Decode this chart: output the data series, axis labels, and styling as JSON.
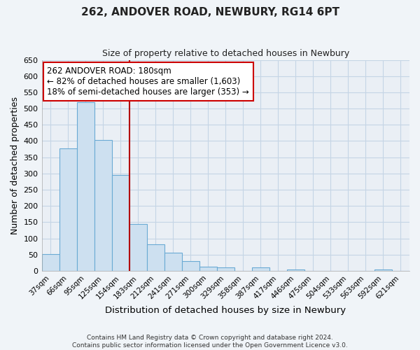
{
  "title": "262, ANDOVER ROAD, NEWBURY, RG14 6PT",
  "subtitle": "Size of property relative to detached houses in Newbury",
  "xlabel": "Distribution of detached houses by size in Newbury",
  "ylabel": "Number of detached properties",
  "bin_labels": [
    "37sqm",
    "66sqm",
    "95sqm",
    "125sqm",
    "154sqm",
    "183sqm",
    "212sqm",
    "241sqm",
    "271sqm",
    "300sqm",
    "329sqm",
    "358sqm",
    "387sqm",
    "417sqm",
    "446sqm",
    "475sqm",
    "504sqm",
    "533sqm",
    "563sqm",
    "592sqm",
    "621sqm"
  ],
  "bin_values": [
    52,
    378,
    519,
    404,
    295,
    145,
    82,
    55,
    30,
    12,
    10,
    0,
    11,
    0,
    5,
    0,
    0,
    0,
    0,
    5,
    0
  ],
  "property_line_bin": 5,
  "ylim": [
    0,
    650
  ],
  "yticks": [
    0,
    50,
    100,
    150,
    200,
    250,
    300,
    350,
    400,
    450,
    500,
    550,
    600,
    650
  ],
  "bar_color": "#cde0f0",
  "bar_edge_color": "#6aaad4",
  "property_line_color": "#b30000",
  "annotation_line1": "262 ANDOVER ROAD: 180sqm",
  "annotation_line2": "← 82% of detached houses are smaller (1,603)",
  "annotation_line3": "18% of semi-detached houses are larger (353) →",
  "annotation_box_color": "#ffffff",
  "annotation_box_edge_color": "#cc0000",
  "footer_line1": "Contains HM Land Registry data © Crown copyright and database right 2024.",
  "footer_line2": "Contains public sector information licensed under the Open Government Licence v3.0.",
  "bg_color": "#e8eef5",
  "plot_bg_color": "#e8eef5"
}
